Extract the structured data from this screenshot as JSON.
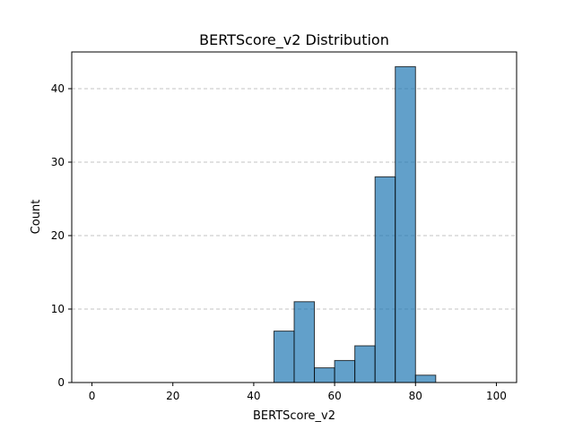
{
  "chart_data": {
    "type": "bar",
    "title": "BERTScore_v2 Distribution",
    "xlabel": "BERTScore_v2",
    "ylabel": "Count",
    "xlim": [
      -5,
      105
    ],
    "ylim": [
      0,
      45
    ],
    "xticks": [
      0,
      20,
      40,
      60,
      80,
      100
    ],
    "yticks": [
      0,
      10,
      20,
      30,
      40
    ],
    "grid": "y-dashed",
    "bar_color": "#1f77b4",
    "bins": [
      {
        "start": 45,
        "end": 50,
        "count": 7
      },
      {
        "start": 50,
        "end": 55,
        "count": 11
      },
      {
        "start": 55,
        "end": 60,
        "count": 2
      },
      {
        "start": 60,
        "end": 65,
        "count": 3
      },
      {
        "start": 65,
        "end": 70,
        "count": 5
      },
      {
        "start": 70,
        "end": 75,
        "count": 28
      },
      {
        "start": 75,
        "end": 80,
        "count": 43
      },
      {
        "start": 80,
        "end": 85,
        "count": 1
      }
    ]
  }
}
